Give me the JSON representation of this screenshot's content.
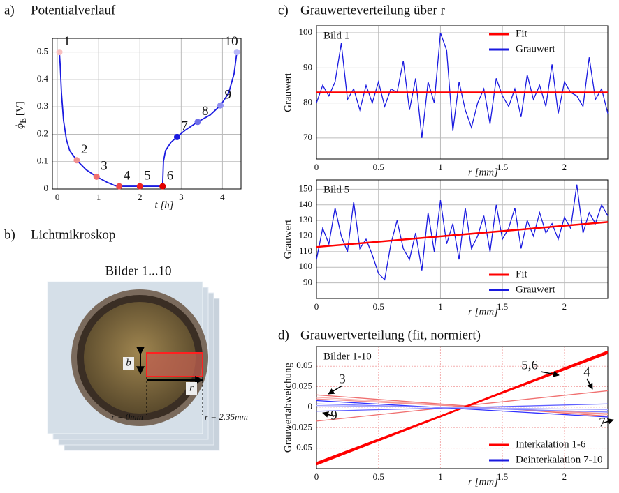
{
  "chart_data": [
    {
      "type": "line",
      "panel": "a)",
      "title": "Potentialverlauf",
      "xlabel": "t [h]",
      "ylabel": "ϕ",
      "ylabel_sub": "E",
      "ylabel_unit": "[V]",
      "xlim": [
        -0.12,
        4.45
      ],
      "ylim": [
        0,
        0.55
      ],
      "xticks": [
        0,
        1,
        2,
        3,
        4
      ],
      "yticks": [
        0,
        0.1,
        0.2,
        0.3,
        0.4,
        0.5
      ],
      "grid": true,
      "color": "#1a1ae0",
      "x": [
        0.05,
        0.07,
        0.1,
        0.15,
        0.22,
        0.3,
        0.47,
        0.7,
        0.95,
        1.2,
        1.4,
        1.5,
        2.0,
        2.55,
        2.57,
        2.62,
        2.75,
        2.9,
        3.1,
        3.4,
        3.7,
        3.95,
        4.15,
        4.28,
        4.35
      ],
      "values": [
        0.5,
        0.45,
        0.35,
        0.25,
        0.18,
        0.14,
        0.105,
        0.07,
        0.045,
        0.025,
        0.012,
        0.01,
        0.01,
        0.01,
        0.1,
        0.14,
        0.17,
        0.19,
        0.215,
        0.245,
        0.27,
        0.305,
        0.35,
        0.42,
        0.5
      ],
      "points": {
        "labels": [
          "1",
          "2",
          "3",
          "4",
          "5",
          "6",
          "7",
          "8",
          "9",
          "10"
        ],
        "x": [
          0.05,
          0.47,
          0.95,
          1.5,
          2.0,
          2.55,
          2.9,
          3.4,
          3.95,
          4.35
        ],
        "values": [
          0.5,
          0.105,
          0.045,
          0.01,
          0.01,
          0.01,
          0.19,
          0.245,
          0.305,
          0.5
        ],
        "colors": [
          "#f8c0c0",
          "#f09090",
          "#f07070",
          "#f04848",
          "#f02020",
          "#e00000",
          "#1a1ae0",
          "#7070e8",
          "#9090f0",
          "#b8b8f8"
        ]
      }
    },
    {
      "type": "line",
      "panel": "c)",
      "title": "Grauwerteverteilung über r",
      "label": "Bild 1",
      "xlabel": "r [mm]",
      "ylabel": "Grauwert",
      "xlim": [
        0,
        2.35
      ],
      "ylim": [
        64,
        102
      ],
      "xticks": [
        0,
        0.5,
        1,
        1.5,
        2
      ],
      "yticks": [
        70,
        80,
        90,
        100
      ],
      "grid": true,
      "legend": "upper right",
      "series": [
        {
          "name": "Fit",
          "color": "#ff0000",
          "x": [
            0,
            2.35
          ],
          "values": [
            83,
            83
          ]
        },
        {
          "name": "Grauwert",
          "color": "#1a1ae0",
          "x": [
            0,
            0.05,
            0.1,
            0.15,
            0.2,
            0.25,
            0.3,
            0.35,
            0.4,
            0.45,
            0.5,
            0.55,
            0.6,
            0.65,
            0.7,
            0.75,
            0.8,
            0.85,
            0.9,
            0.95,
            1,
            1.05,
            1.1,
            1.15,
            1.2,
            1.25,
            1.3,
            1.35,
            1.4,
            1.45,
            1.5,
            1.55,
            1.6,
            1.65,
            1.7,
            1.75,
            1.8,
            1.85,
            1.9,
            1.95,
            2,
            2.05,
            2.1,
            2.15,
            2.2,
            2.25,
            2.3,
            2.35
          ],
          "values": [
            80,
            85,
            82,
            86,
            97,
            81,
            84,
            78,
            85,
            80,
            86,
            79,
            84,
            83,
            92,
            78,
            87,
            70,
            86,
            80,
            100,
            95,
            72,
            86,
            78,
            73,
            80,
            84,
            74,
            87,
            82,
            79,
            84,
            76,
            88,
            81,
            85,
            79,
            91,
            77,
            86,
            83,
            82,
            79,
            93,
            81,
            84,
            77
          ]
        }
      ]
    },
    {
      "type": "line",
      "label": "Bild 5",
      "xlabel": "r [mm]",
      "ylabel": "Grauwert",
      "xlim": [
        0,
        2.35
      ],
      "ylim": [
        80,
        156
      ],
      "xticks": [
        0,
        0.5,
        1,
        1.5,
        2
      ],
      "yticks": [
        90,
        100,
        110,
        120,
        130,
        140,
        150
      ],
      "grid": true,
      "legend": "lower right",
      "series": [
        {
          "name": "Fit",
          "color": "#ff0000",
          "x": [
            0,
            2.35
          ],
          "values": [
            113,
            129
          ]
        },
        {
          "name": "Grauwert",
          "color": "#1a1ae0",
          "x": [
            0,
            0.05,
            0.1,
            0.15,
            0.2,
            0.25,
            0.3,
            0.35,
            0.4,
            0.45,
            0.5,
            0.55,
            0.6,
            0.65,
            0.7,
            0.75,
            0.8,
            0.85,
            0.9,
            0.95,
            1,
            1.05,
            1.1,
            1.15,
            1.2,
            1.25,
            1.3,
            1.35,
            1.4,
            1.45,
            1.5,
            1.55,
            1.6,
            1.65,
            1.7,
            1.75,
            1.8,
            1.85,
            1.9,
            1.95,
            2,
            2.05,
            2.1,
            2.15,
            2.2,
            2.25,
            2.3,
            2.35
          ],
          "values": [
            105,
            125,
            115,
            138,
            120,
            110,
            142,
            112,
            118,
            108,
            96,
            92,
            115,
            130,
            112,
            105,
            122,
            98,
            135,
            110,
            143,
            115,
            128,
            105,
            138,
            112,
            120,
            133,
            110,
            140,
            118,
            125,
            138,
            112,
            130,
            120,
            135,
            122,
            128,
            118,
            132,
            125,
            153,
            122,
            135,
            128,
            140,
            133
          ]
        }
      ]
    },
    {
      "type": "lines",
      "panel": "d)",
      "title": "Grauwertverteilung (fit, normiert)",
      "label": "Bilder 1-10",
      "xlabel": "r [mm]",
      "ylabel": "Grauwertabweichung",
      "xlim": [
        0,
        2.35
      ],
      "ylim": [
        -0.075,
        0.074
      ],
      "xticks": [
        0,
        0.5,
        1,
        1.5,
        2
      ],
      "yticks": [
        -0.05,
        -0.025,
        0,
        0.025,
        0.05
      ],
      "grid": true,
      "legend": "lower right",
      "x": [
        0,
        2.35
      ],
      "series": [
        {
          "name": "Interkalation 1-6",
          "color": "#ff0000",
          "lines": [
            [
              0.012,
              -0.009
            ],
            [
              0.01,
              -0.008
            ],
            [
              0.015,
              -0.011
            ],
            [
              -0.017,
              0.02
            ],
            [
              -0.07,
              0.068
            ],
            [
              -0.068,
              0.066
            ]
          ],
          "line_colors": [
            "#f8b0b0",
            "#f49090",
            "#f07070",
            "#f07070",
            "#ff0000",
            "#ff0000"
          ]
        },
        {
          "name": "Deinterkalation 7-10",
          "color": "#1a1ae0",
          "lines": [
            [
              0.008,
              -0.012
            ],
            [
              0.004,
              -0.006
            ],
            [
              -0.005,
              0.004
            ],
            [
              0.002,
              -0.003
            ]
          ],
          "line_colors": [
            "#3030ff",
            "#8080ff",
            "#6060ff",
            "#a8a8ff"
          ]
        }
      ],
      "annotations": [
        "5,6",
        "4",
        "3",
        "9",
        "7"
      ]
    }
  ],
  "photo": {
    "panel": "b)",
    "title": "Lichtmikroskop",
    "caption": "Bilder 1...10",
    "b_label": "b",
    "r_label": "r",
    "r_start": "r = 0mm",
    "r_end": "r = 2.35mm"
  }
}
